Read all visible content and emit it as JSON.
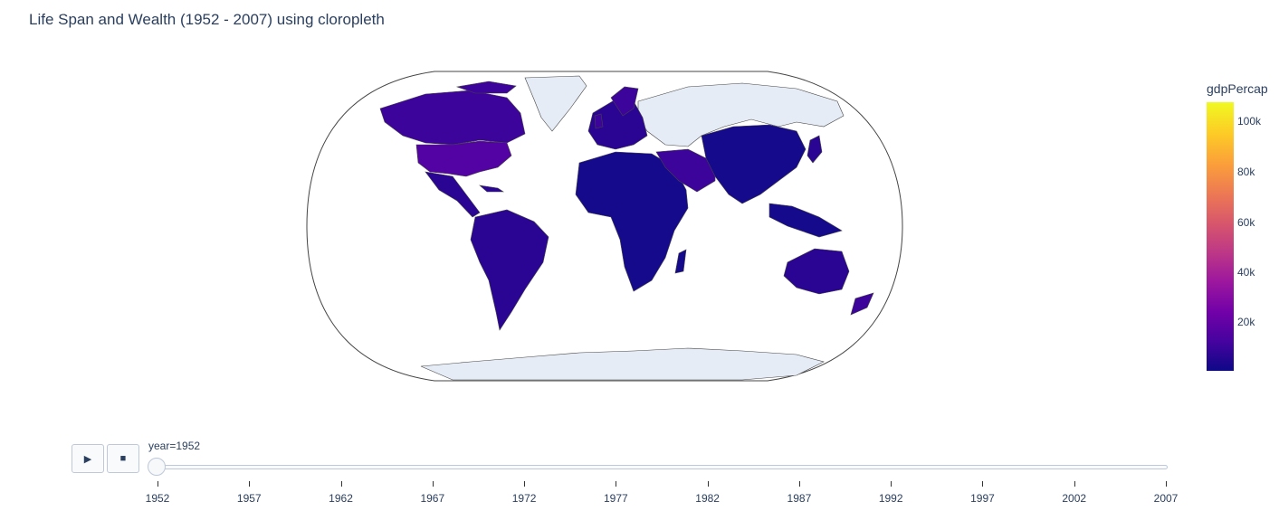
{
  "title": "Life Span and Wealth (1952 - 2007) using cloropleth",
  "colorbar": {
    "title": "gdpPercap",
    "ticks": [
      "100k",
      "80k",
      "60k",
      "40k",
      "20k"
    ],
    "colorscale": [
      "#0d0887",
      "#46039f",
      "#7201a8",
      "#9c179e",
      "#bd3786",
      "#d8576b",
      "#ed7953",
      "#fb9f3a",
      "#fdca26",
      "#f0f921"
    ]
  },
  "controls": {
    "play_icon": "play-icon",
    "stop_icon": "stop-icon",
    "play_glyph": "▶",
    "stop_glyph": "■"
  },
  "slider": {
    "current_label": "year=1952",
    "years": [
      "1952",
      "1957",
      "1962",
      "1967",
      "1972",
      "1977",
      "1982",
      "1987",
      "1992",
      "1997",
      "2002",
      "2007"
    ],
    "current_index": 0
  },
  "map": {
    "projection": "natural earth",
    "no_data_color": "#e5ecf6",
    "border_color": "#444444"
  }
}
